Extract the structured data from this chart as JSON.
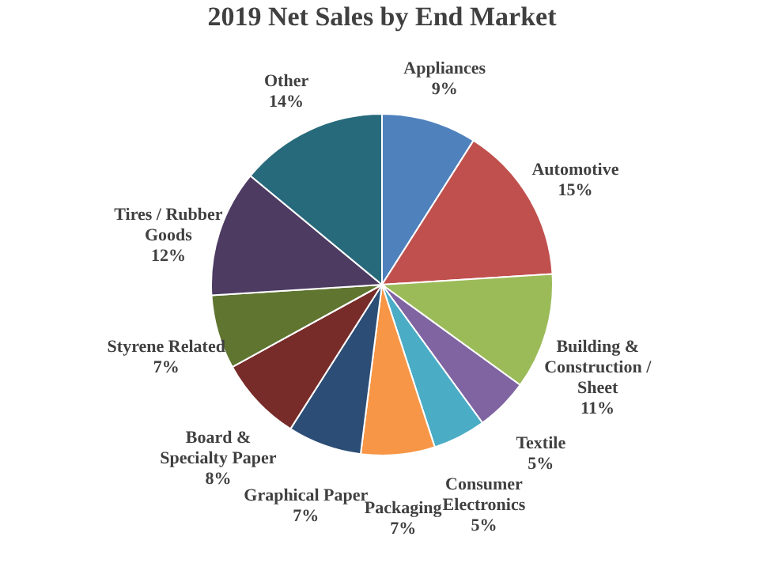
{
  "chart_data": {
    "type": "pie",
    "title": "2019 Net Sales by End Market",
    "categories": [
      "Appliances",
      "Automotive",
      "Building & Construction / Sheet",
      "Textile",
      "Consumer Electronics",
      "Packaging",
      "Graphical Paper",
      "Board & Specialty Paper",
      "Styrene Related",
      "Tires / Rubber Goods",
      "Other"
    ],
    "values": [
      9,
      15,
      11,
      5,
      5,
      7,
      7,
      8,
      7,
      12,
      14
    ],
    "value_labels": [
      "9%",
      "15%",
      "11%",
      "5%",
      "5%",
      "7%",
      "7%",
      "8%",
      "7%",
      "12%",
      "14%"
    ],
    "colors": [
      "#4f81bd",
      "#c0504d",
      "#9bbb59",
      "#8064a2",
      "#4bacc6",
      "#f79646",
      "#2c4d75",
      "#772c2a",
      "#5f7530",
      "#4d3b62",
      "#276a7c"
    ],
    "legend": false
  }
}
